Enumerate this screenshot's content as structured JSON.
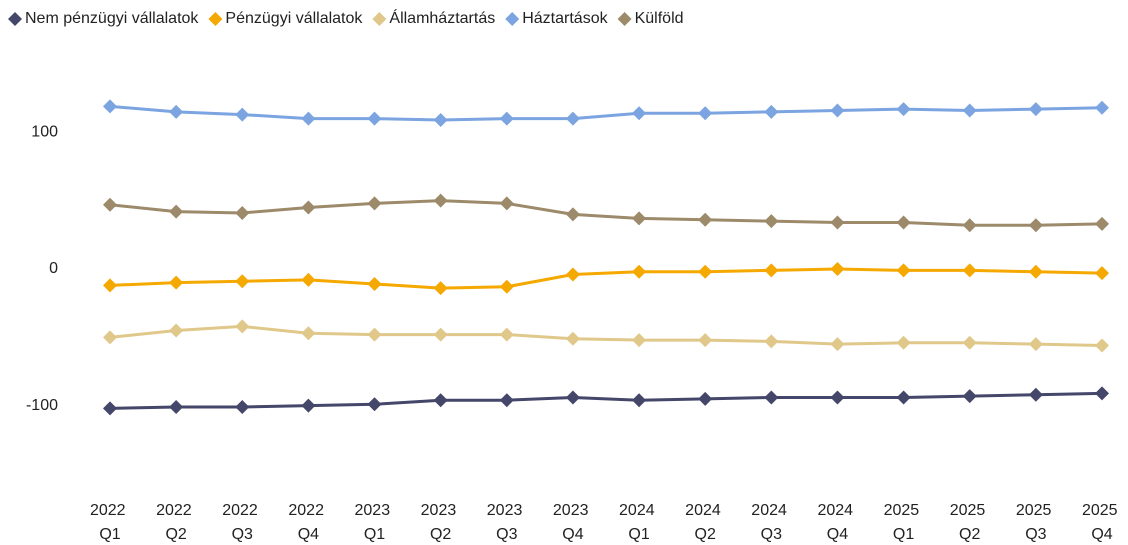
{
  "chart_data": {
    "type": "line",
    "categories": [
      "2022 Q1",
      "2022 Q2",
      "2022 Q3",
      "2022 Q4",
      "2023 Q1",
      "2023 Q2",
      "2023 Q3",
      "2023 Q4",
      "2024 Q1",
      "2024 Q2",
      "2024 Q3",
      "2024 Q4",
      "2025 Q1",
      "2025 Q2",
      "2025 Q3",
      "2025 Q4"
    ],
    "series": [
      {
        "name": "Nem pénzügyi vállalatok",
        "color": "#44466a",
        "values": [
          -102,
          -101,
          -101,
          -100,
          -99,
          -96,
          -96,
          -94,
          -96,
          -95,
          -94,
          -94,
          -94,
          -93,
          -92,
          -91
        ]
      },
      {
        "name": "Pénzügyi vállalatok",
        "color": "#f5a800",
        "values": [
          -12,
          -10,
          -9,
          -8,
          -11,
          -14,
          -13,
          -4,
          -2,
          -2,
          -1,
          0,
          -1,
          -1,
          -2,
          -3
        ]
      },
      {
        "name": "Államháztartás",
        "color": "#e0c88a",
        "values": [
          -50,
          -45,
          -42,
          -47,
          -48,
          -48,
          -48,
          -51,
          -52,
          -52,
          -53,
          -55,
          -54,
          -54,
          -55,
          -56
        ]
      },
      {
        "name": "Háztartások",
        "color": "#7ba4e0",
        "values": [
          119,
          115,
          113,
          110,
          110,
          109,
          110,
          110,
          114,
          114,
          115,
          116,
          117,
          116,
          117,
          118
        ]
      },
      {
        "name": "Külföld",
        "color": "#9c8a6a",
        "values": [
          47,
          42,
          41,
          45,
          48,
          50,
          48,
          40,
          37,
          36,
          35,
          34,
          34,
          32,
          32,
          33
        ]
      }
    ],
    "ylim": [
      -150,
      150
    ],
    "yticks": [
      -100,
      0,
      100
    ],
    "grid": false,
    "legend": "top"
  }
}
